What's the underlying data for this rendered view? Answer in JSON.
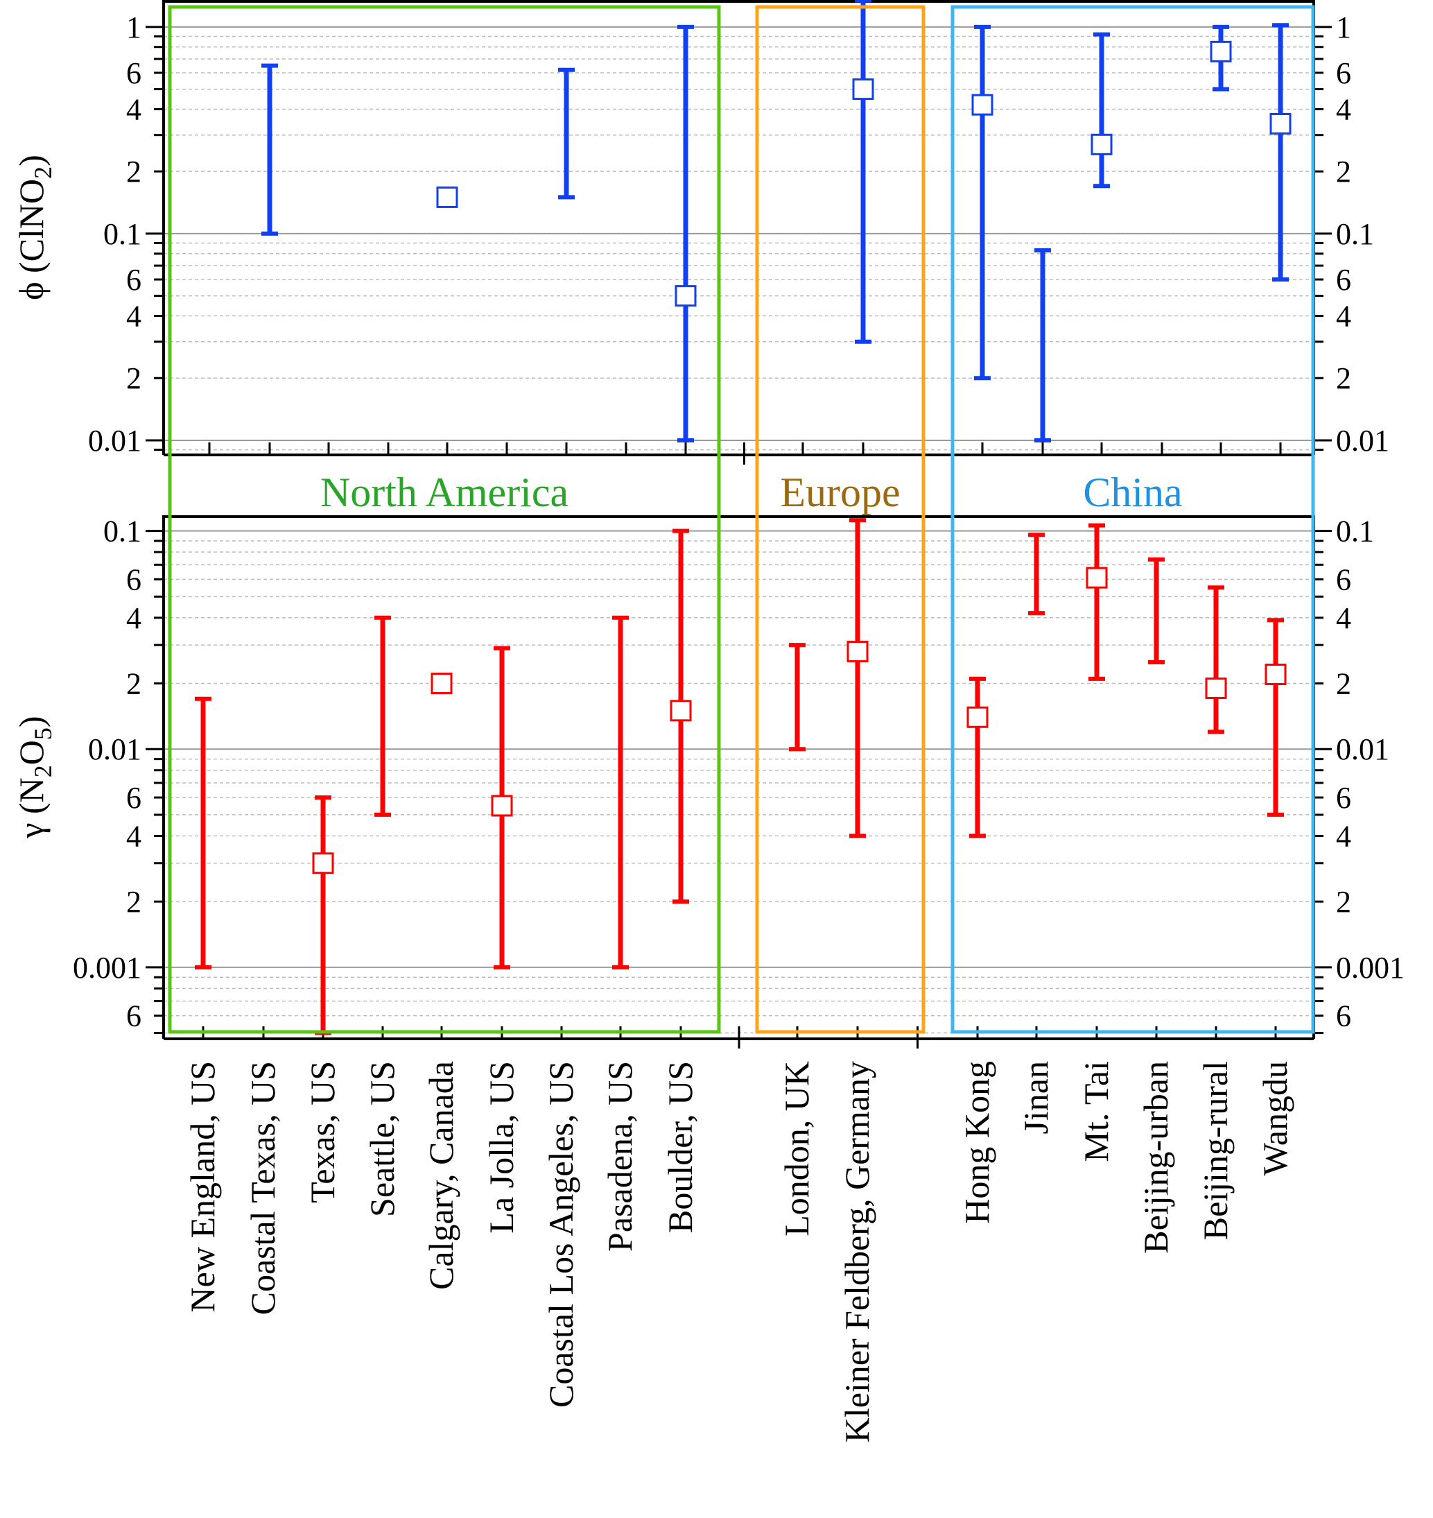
{
  "colors": {
    "phi": "#1040f0",
    "gamma": "#ff0000",
    "north_america": "#5ac414",
    "europe": "#ffa21c",
    "europe_text": "#9b6a10",
    "china": "#44b4f0",
    "china_text": "#2090e0",
    "north_america_text": "#2aa52a"
  },
  "regions": [
    {
      "name": "North America",
      "from": 0,
      "to": 8
    },
    {
      "name": "Europe",
      "from": 9,
      "to": 10
    },
    {
      "name": "China",
      "from": 11,
      "to": 16
    }
  ],
  "chart_data": [
    {
      "type": "scatter",
      "panel": "top",
      "ylabel": "ϕ (ClNO",
      "ylabel_sub": "2",
      "ylabel_close": ")",
      "yscale": "log",
      "ylim": [
        0.0085,
        1.35
      ],
      "major_ticks": [
        0.01,
        0.1,
        1
      ],
      "major_tick_labels": [
        "0.01",
        "0.1",
        "1"
      ],
      "minor_tick_labels": [
        {
          "value": 0.02,
          "label": "2"
        },
        {
          "value": 0.04,
          "label": "4"
        },
        {
          "value": 0.06,
          "label": "6"
        },
        {
          "value": 0.2,
          "label": "2"
        },
        {
          "value": 0.4,
          "label": "4"
        },
        {
          "value": 0.6,
          "label": "6"
        }
      ],
      "categories": [
        "New England, US",
        "Coastal Texas, US",
        "Texas, US",
        "Seattle, US",
        "Calgary, Canada",
        "La Jolla, US",
        "Coastal Los Angeles, US",
        "Pasadena, US",
        "Boulder, US",
        "London, UK",
        "Kleiner Feldberg, Germany",
        "Hong Kong",
        "Jinan",
        "Mt. Tai",
        "Beijing-urban",
        "Beijing-rural",
        "Wangdu"
      ],
      "points": [
        {
          "category": "Coastal Texas, US",
          "low": 0.1,
          "high": 0.65,
          "value": null
        },
        {
          "category": "Calgary, Canada",
          "low": null,
          "high": null,
          "value": 0.15
        },
        {
          "category": "Coastal Los Angeles, US",
          "low": 0.15,
          "high": 0.62,
          "value": null
        },
        {
          "category": "Boulder, US",
          "low": 0.01,
          "high": 1.0,
          "value": 0.05
        },
        {
          "category": "Kleiner Feldberg, Germany",
          "low": 0.03,
          "high": 1.4,
          "value": 0.5
        },
        {
          "category": "Hong Kong",
          "low": 0.02,
          "high": 1.0,
          "value": 0.42
        },
        {
          "category": "Jinan",
          "low": 0.01,
          "high": 0.083,
          "value": null
        },
        {
          "category": "Mt. Tai",
          "low": 0.17,
          "high": 0.92,
          "value": 0.27
        },
        {
          "category": "Beijing-rural",
          "low": 0.5,
          "high": 1.0,
          "value": 0.76
        },
        {
          "category": "Wangdu",
          "low": 0.06,
          "high": 1.02,
          "value": 0.34
        }
      ]
    },
    {
      "type": "scatter",
      "panel": "bottom",
      "ylabel": "γ (N",
      "ylabel_sub": "2",
      "ylabel_mid": "O",
      "ylabel_sub2": "5",
      "ylabel_close": ")",
      "yscale": "log",
      "ylim": [
        0.00047,
        0.118
      ],
      "major_ticks": [
        0.001,
        0.01,
        0.1
      ],
      "major_tick_labels": [
        "0.001",
        "0.01",
        "0.1"
      ],
      "minor_tick_labels": [
        {
          "value": 0.0006,
          "label": "6"
        },
        {
          "value": 0.002,
          "label": "2"
        },
        {
          "value": 0.004,
          "label": "4"
        },
        {
          "value": 0.006,
          "label": "6"
        },
        {
          "value": 0.02,
          "label": "2"
        },
        {
          "value": 0.04,
          "label": "4"
        },
        {
          "value": 0.06,
          "label": "6"
        }
      ],
      "categories": [
        "New England, US",
        "Coastal Texas, US",
        "Texas, US",
        "Seattle, US",
        "Calgary, Canada",
        "La Jolla, US",
        "Coastal Los Angeles, US",
        "Pasadena, US",
        "Boulder, US",
        "London, UK",
        "Kleiner Feldberg, Germany",
        "Hong Kong",
        "Jinan",
        "Mt. Tai",
        "Beijing-urban",
        "Beijing-rural",
        "Wangdu"
      ],
      "points": [
        {
          "category": "New England, US",
          "low": 0.001,
          "high": 0.017,
          "value": null
        },
        {
          "category": "Texas, US",
          "low": 0.0005,
          "high": 0.006,
          "value": 0.003
        },
        {
          "category": "Seattle, US",
          "low": 0.005,
          "high": 0.04,
          "value": null
        },
        {
          "category": "Calgary, Canada",
          "low": null,
          "high": null,
          "value": 0.02
        },
        {
          "category": "La Jolla, US",
          "low": 0.001,
          "high": 0.029,
          "value": 0.0055
        },
        {
          "category": "Pasadena, US",
          "low": 0.001,
          "high": 0.04,
          "value": null
        },
        {
          "category": "Boulder, US",
          "low": 0.002,
          "high": 0.1,
          "value": 0.015
        },
        {
          "category": "London, UK",
          "low": 0.01,
          "high": 0.03,
          "value": null
        },
        {
          "category": "Kleiner Feldberg, Germany",
          "low": 0.004,
          "high": 0.112,
          "value": 0.028
        },
        {
          "category": "Hong Kong",
          "low": 0.004,
          "high": 0.021,
          "value": 0.014
        },
        {
          "category": "Jinan",
          "low": 0.042,
          "high": 0.096,
          "value": null
        },
        {
          "category": "Mt. Tai",
          "low": 0.021,
          "high": 0.106,
          "value": 0.061
        },
        {
          "category": "Beijing-urban",
          "low": 0.025,
          "high": 0.074,
          "value": null
        },
        {
          "category": "Beijing-rural",
          "low": 0.012,
          "high": 0.055,
          "value": 0.019
        },
        {
          "category": "Wangdu",
          "low": 0.005,
          "high": 0.039,
          "value": 0.022
        }
      ]
    }
  ]
}
